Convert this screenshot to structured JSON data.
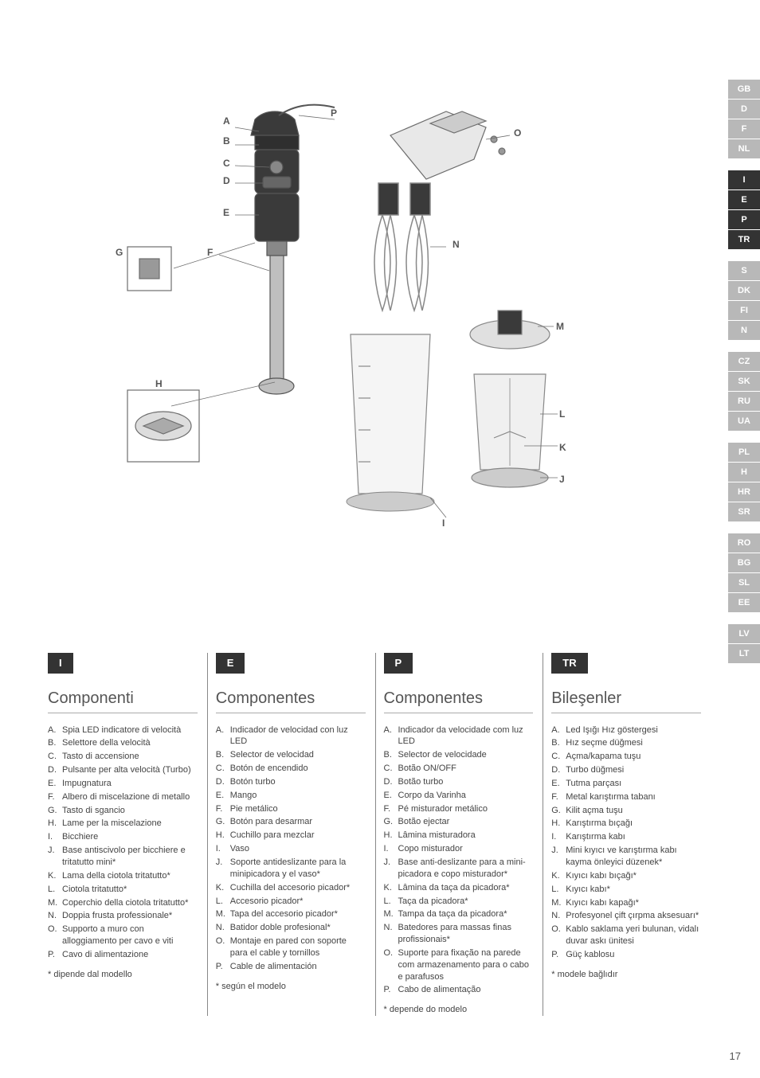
{
  "page_number": "17",
  "diagram": {
    "callouts": {
      "A": "A",
      "B": "B",
      "C": "C",
      "D": "D",
      "E": "E",
      "F": "F",
      "G": "G",
      "H": "H",
      "I": "I",
      "J": "J",
      "K": "K",
      "L": "L",
      "M": "M",
      "N": "N",
      "O": "O",
      "P": "P"
    },
    "stroke": "#6d6d6d",
    "fill_dark": "#4a4a4a",
    "fill_light": "#d0d0d0"
  },
  "lang_tabs": [
    {
      "code": "GB",
      "active": false
    },
    {
      "code": "D",
      "active": false
    },
    {
      "code": "F",
      "active": false
    },
    {
      "code": "NL",
      "active": false
    },
    {
      "gap": true
    },
    {
      "code": "I",
      "active": true
    },
    {
      "code": "E",
      "active": true
    },
    {
      "code": "P",
      "active": true
    },
    {
      "code": "TR",
      "active": true
    },
    {
      "gap": true
    },
    {
      "code": "S",
      "active": false
    },
    {
      "code": "DK",
      "active": false
    },
    {
      "code": "FI",
      "active": false
    },
    {
      "code": "N",
      "active": false
    },
    {
      "gap": true
    },
    {
      "code": "CZ",
      "active": false
    },
    {
      "code": "SK",
      "active": false
    },
    {
      "code": "RU",
      "active": false
    },
    {
      "code": "UA",
      "active": false
    },
    {
      "gap": true
    },
    {
      "code": "PL",
      "active": false
    },
    {
      "code": "H",
      "active": false
    },
    {
      "code": "HR",
      "active": false
    },
    {
      "code": "SR",
      "active": false
    },
    {
      "gap": true
    },
    {
      "code": "RO",
      "active": false
    },
    {
      "code": "BG",
      "active": false
    },
    {
      "code": "SL",
      "active": false
    },
    {
      "code": "EE",
      "active": false
    },
    {
      "gap": true
    },
    {
      "code": "LV",
      "active": false
    },
    {
      "code": "LT",
      "active": false
    }
  ],
  "columns": [
    {
      "badge": "I",
      "title": "Componenti",
      "items": [
        {
          "l": "A.",
          "t": "Spia LED indicatore di velocità"
        },
        {
          "l": "B.",
          "t": "Selettore della velocità"
        },
        {
          "l": "C.",
          "t": "Tasto di accensione"
        },
        {
          "l": "D.",
          "t": "Pulsante per alta velocità (Turbo)"
        },
        {
          "l": "E.",
          "t": "Impugnatura"
        },
        {
          "l": "F.",
          "t": "Albero di miscelazione di metallo"
        },
        {
          "l": "G.",
          "t": "Tasto di sgancio"
        },
        {
          "l": "H.",
          "t": "Lame per la miscelazione"
        },
        {
          "l": "I.",
          "t": "Bicchiere"
        },
        {
          "l": "J.",
          "t": "Base antiscivolo per bicchiere e tritatutto mini*"
        },
        {
          "l": "K.",
          "t": "Lama della ciotola tritatutto*"
        },
        {
          "l": "L.",
          "t": "Ciotola tritatutto*"
        },
        {
          "l": "M.",
          "t": "Coperchio della ciotola tritatutto*"
        },
        {
          "l": "N.",
          "t": "Doppia frusta professionale*"
        },
        {
          "l": "O.",
          "t": "Supporto a muro con alloggiamento per cavo e viti"
        },
        {
          "l": "P.",
          "t": "Cavo di alimentazione"
        }
      ],
      "footnote": "* dipende dal modello"
    },
    {
      "badge": "E",
      "title": "Componentes",
      "items": [
        {
          "l": "A.",
          "t": "Indicador de velocidad con luz LED"
        },
        {
          "l": "B.",
          "t": "Selector de velocidad"
        },
        {
          "l": "C.",
          "t": "Botón de encendido"
        },
        {
          "l": "D.",
          "t": "Botón turbo"
        },
        {
          "l": "E.",
          "t": "Mango"
        },
        {
          "l": "F.",
          "t": "Pie metálico"
        },
        {
          "l": "G.",
          "t": "Botón para desarmar"
        },
        {
          "l": "H.",
          "t": "Cuchillo para mezclar"
        },
        {
          "l": "I.",
          "t": "Vaso"
        },
        {
          "l": "J.",
          "t": "Soporte antideslizante para la minipicadora y el vaso*"
        },
        {
          "l": "K.",
          "t": "Cuchilla del accesorio picador*"
        },
        {
          "l": "L.",
          "t": "Accesorio picador*"
        },
        {
          "l": "M.",
          "t": "Tapa del accesorio picador*"
        },
        {
          "l": "N.",
          "t": "Batidor doble profesional*"
        },
        {
          "l": "O.",
          "t": "Montaje en pared con soporte para el cable y tornillos"
        },
        {
          "l": "P.",
          "t": "Cable de alimentación"
        }
      ],
      "footnote": "* según el modelo"
    },
    {
      "badge": "P",
      "title": "Componentes",
      "items": [
        {
          "l": "A.",
          "t": "Indicador da velocidade com luz LED"
        },
        {
          "l": "B.",
          "t": "Selector de velocidade"
        },
        {
          "l": "C.",
          "t": "Botão ON/OFF"
        },
        {
          "l": "D.",
          "t": "Botão turbo"
        },
        {
          "l": "E.",
          "t": "Corpo da Varinha"
        },
        {
          "l": "F.",
          "t": "Pé misturador metálico"
        },
        {
          "l": "G.",
          "t": "Botão ejectar"
        },
        {
          "l": "H.",
          "t": "Lâmina misturadora"
        },
        {
          "l": "I.",
          "t": "Copo misturador"
        },
        {
          "l": "J.",
          "t": "Base anti-deslizante para a mini-picadora e copo misturador*"
        },
        {
          "l": "K.",
          "t": "Lâmina da taça da picadora*"
        },
        {
          "l": "L.",
          "t": "Taça da picadora*"
        },
        {
          "l": "M.",
          "t": "Tampa da taça da picadora*"
        },
        {
          "l": "N.",
          "t": "Batedores para massas finas profissionais*"
        },
        {
          "l": "O.",
          "t": "Suporte para fixação na parede com armazenamento para o cabo e parafusos"
        },
        {
          "l": "P.",
          "t": "Cabo de alimentação"
        }
      ],
      "footnote": "* depende do modelo"
    },
    {
      "badge": "TR",
      "title": "Bileşenler",
      "items": [
        {
          "l": "A.",
          "t": "Led Işığı Hız göstergesi"
        },
        {
          "l": "B.",
          "t": "Hız seçme düğmesi"
        },
        {
          "l": "C.",
          "t": "Açma/kapama tuşu"
        },
        {
          "l": "D.",
          "t": "Turbo düğmesi"
        },
        {
          "l": "E.",
          "t": "Tutma parçası"
        },
        {
          "l": "F.",
          "t": "Metal karıştırma tabanı"
        },
        {
          "l": "G.",
          "t": "Kilit açma tuşu"
        },
        {
          "l": "H.",
          "t": "Karıştırma bıçağı"
        },
        {
          "l": "I.",
          "t": "Karıştırma kabı"
        },
        {
          "l": "J.",
          "t": "Mini kıyıcı ve karıştırma kabı kayma önleyici düzenek*"
        },
        {
          "l": "K.",
          "t": "Kıyıcı kabı bıçağı*"
        },
        {
          "l": "L.",
          "t": "Kıyıcı kabı*"
        },
        {
          "l": "M.",
          "t": "Kıyıcı kabı kapağı*"
        },
        {
          "l": "N.",
          "t": "Profesyonel çift çırpma aksesuarı*"
        },
        {
          "l": "O.",
          "t": "Kablo saklama yeri bulunan, vidalı duvar askı ünitesi"
        },
        {
          "l": "P.",
          "t": "Güç kablosu"
        }
      ],
      "footnote": "* modele bağlıdır"
    }
  ]
}
